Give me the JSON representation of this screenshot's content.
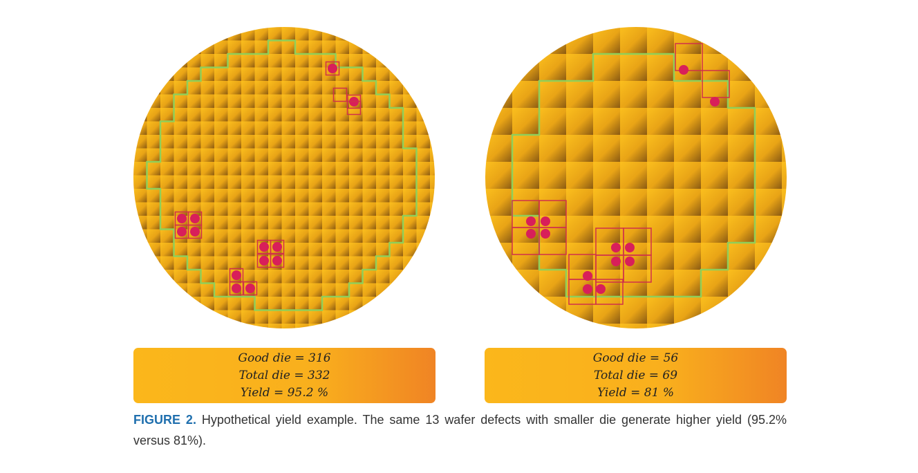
{
  "figure": {
    "panels": [
      {
        "lines": [
          "Good die = 316",
          "Total die = 332",
          "Yield = 95.2 %"
        ]
      },
      {
        "lines": [
          "Good die = 56",
          "Total die = 69",
          "Yield = 81 %"
        ]
      }
    ],
    "caption": {
      "label": "FIGURE 2.",
      "text": "Hypothetical yield example. The same 13 wafer defects with smaller die generate higher yield (95.2% versus 81%)."
    }
  }
}
